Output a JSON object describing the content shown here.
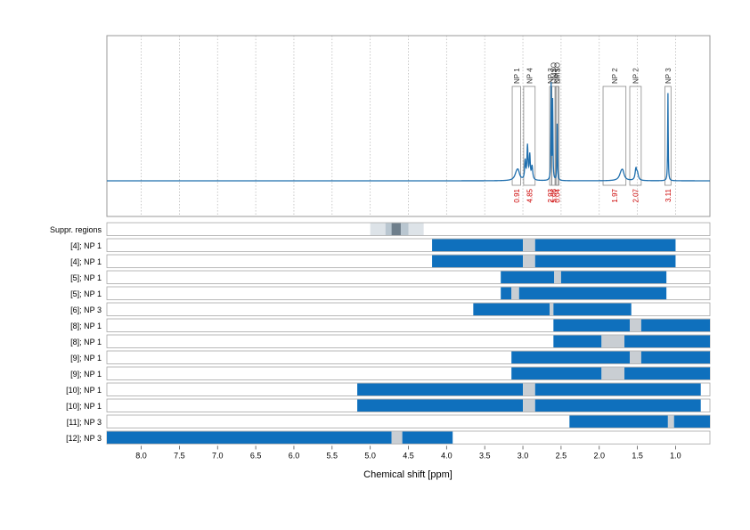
{
  "chart_data": {
    "type": "line",
    "xlabel": "Chemical shift [ppm]",
    "xlim": [
      8.45,
      0.55
    ],
    "x_reversed": true,
    "x_ticks": [
      8.0,
      7.5,
      7.0,
      6.5,
      6.0,
      5.5,
      5.0,
      4.5,
      4.0,
      3.5,
      3.0,
      2.5,
      2.0,
      1.5,
      1.0
    ],
    "x_tick_labels": [
      "8.0",
      "7.5",
      "7.0",
      "6.5",
      "6.0",
      "5.5",
      "5.0",
      "4.5",
      "4.0",
      "3.5",
      "3.0",
      "2.5",
      "2.0",
      "1.5",
      "1.0"
    ],
    "grid": "vertical dotted at x ticks",
    "colors": {
      "spectrum": "#1f6fae",
      "range": "#0f70bd",
      "suppressed": "#c9ced3",
      "integral": "#cc0000",
      "suppr_light": "#dde3e8",
      "suppr_mid": "#b9c6d0",
      "suppr_dark": "#6f7f8c"
    },
    "spectrum": {
      "baseline": 0,
      "peaks": [
        {
          "x": 3.08,
          "h": 0.06,
          "w": 0.03
        },
        {
          "x": 3.06,
          "h": 0.04,
          "w": 0.02
        },
        {
          "x": 2.97,
          "h": 0.14,
          "w": 0.008
        },
        {
          "x": 2.94,
          "h": 0.25,
          "w": 0.008
        },
        {
          "x": 2.91,
          "h": 0.18,
          "w": 0.008
        },
        {
          "x": 2.88,
          "h": 0.1,
          "w": 0.01
        },
        {
          "x": 2.63,
          "h": 0.72,
          "w": 0.004
        },
        {
          "x": 2.61,
          "h": 0.6,
          "w": 0.004
        },
        {
          "x": 2.55,
          "h": 0.47,
          "w": 0.004
        },
        {
          "x": 1.71,
          "h": 0.06,
          "w": 0.03
        },
        {
          "x": 1.69,
          "h": 0.04,
          "w": 0.02
        },
        {
          "x": 1.52,
          "h": 0.08,
          "w": 0.012
        },
        {
          "x": 1.5,
          "h": 0.05,
          "w": 0.015
        },
        {
          "x": 1.1,
          "h": 0.66,
          "w": 0.004
        }
      ]
    },
    "integral_regions": [
      {
        "label": "NP 1",
        "from": 3.14,
        "to": 3.03,
        "value": "0.91"
      },
      {
        "label": "NP 4",
        "from": 2.99,
        "to": 2.84,
        "value": "4.85"
      },
      {
        "label": "NP 3",
        "from": 2.65,
        "to": 2.625,
        "value": "2.93"
      },
      {
        "label": "DMSO",
        "from": 2.62,
        "to": 2.58,
        "value": "5.06"
      },
      {
        "label": "DMSO",
        "from": 2.565,
        "to": 2.54,
        "value": "0.04"
      },
      {
        "label": "NP 1",
        "from": 2.575,
        "to": 2.525,
        "value": ""
      },
      {
        "label": "NP 2",
        "from": 1.95,
        "to": 1.65,
        "value": "1.97"
      },
      {
        "label": "NP 2",
        "from": 1.6,
        "to": 1.45,
        "value": "2.07"
      },
      {
        "label": "NP 3",
        "from": 1.14,
        "to": 1.06,
        "value": "3.11"
      }
    ],
    "suppressed_regions": {
      "label": "Suppr. regions",
      "layers": [
        {
          "from": 5.0,
          "to": 4.3,
          "shade": "light"
        },
        {
          "from": 4.8,
          "to": 4.5,
          "shade": "mid"
        },
        {
          "from": 4.72,
          "to": 4.6,
          "shade": "dark"
        }
      ]
    },
    "range_rows": [
      {
        "label": "[4]; NP 1",
        "segments": [
          {
            "from": 4.19,
            "to": 3.0,
            "kind": "range"
          },
          {
            "from": 3.0,
            "to": 2.84,
            "kind": "suppressed"
          },
          {
            "from": 2.84,
            "to": 1.0,
            "kind": "range"
          }
        ]
      },
      {
        "label": "[4]; NP 1",
        "segments": [
          {
            "from": 4.19,
            "to": 3.0,
            "kind": "range"
          },
          {
            "from": 3.0,
            "to": 2.84,
            "kind": "suppressed"
          },
          {
            "from": 2.84,
            "to": 1.0,
            "kind": "range"
          }
        ]
      },
      {
        "label": "[5]; NP 1",
        "segments": [
          {
            "from": 3.29,
            "to": 2.59,
            "kind": "range"
          },
          {
            "from": 2.59,
            "to": 2.5,
            "kind": "suppressed"
          },
          {
            "from": 2.5,
            "to": 1.12,
            "kind": "range"
          }
        ]
      },
      {
        "label": "[5]; NP 1",
        "segments": [
          {
            "from": 3.29,
            "to": 3.15,
            "kind": "range"
          },
          {
            "from": 3.15,
            "to": 3.05,
            "kind": "suppressed"
          },
          {
            "from": 3.05,
            "to": 1.12,
            "kind": "range"
          }
        ]
      },
      {
        "label": "[6]; NP 3",
        "segments": [
          {
            "from": 3.65,
            "to": 2.65,
            "kind": "range"
          },
          {
            "from": 2.65,
            "to": 2.6,
            "kind": "suppressed"
          },
          {
            "from": 2.6,
            "to": 1.58,
            "kind": "range"
          }
        ]
      },
      {
        "label": "[8]; NP 1",
        "segments": [
          {
            "from": 2.6,
            "to": 1.6,
            "kind": "range"
          },
          {
            "from": 1.6,
            "to": 1.45,
            "kind": "suppressed"
          },
          {
            "from": 1.45,
            "to": 0.55,
            "kind": "range"
          }
        ]
      },
      {
        "label": "[8]; NP 1",
        "segments": [
          {
            "from": 2.6,
            "to": 1.97,
            "kind": "range"
          },
          {
            "from": 1.97,
            "to": 1.67,
            "kind": "suppressed"
          },
          {
            "from": 1.67,
            "to": 0.55,
            "kind": "range"
          }
        ]
      },
      {
        "label": "[9]; NP 1",
        "segments": [
          {
            "from": 3.15,
            "to": 1.6,
            "kind": "range"
          },
          {
            "from": 1.6,
            "to": 1.45,
            "kind": "suppressed"
          },
          {
            "from": 1.45,
            "to": 0.55,
            "kind": "range"
          }
        ]
      },
      {
        "label": "[9]; NP 1",
        "segments": [
          {
            "from": 3.15,
            "to": 1.97,
            "kind": "range"
          },
          {
            "from": 1.97,
            "to": 1.67,
            "kind": "suppressed"
          },
          {
            "from": 1.67,
            "to": 0.55,
            "kind": "range"
          }
        ]
      },
      {
        "label": "[10]; NP 1",
        "segments": [
          {
            "from": 5.17,
            "to": 3.0,
            "kind": "range"
          },
          {
            "from": 3.0,
            "to": 2.84,
            "kind": "suppressed"
          },
          {
            "from": 2.84,
            "to": 0.67,
            "kind": "range"
          }
        ]
      },
      {
        "label": "[10]; NP 1",
        "segments": [
          {
            "from": 5.17,
            "to": 3.0,
            "kind": "range"
          },
          {
            "from": 3.0,
            "to": 2.84,
            "kind": "suppressed"
          },
          {
            "from": 2.84,
            "to": 0.67,
            "kind": "range"
          }
        ]
      },
      {
        "label": "[11]; NP 3",
        "segments": [
          {
            "from": 2.39,
            "to": 1.1,
            "kind": "range"
          },
          {
            "from": 1.1,
            "to": 1.02,
            "kind": "suppressed"
          },
          {
            "from": 1.02,
            "to": 0.55,
            "kind": "range"
          }
        ]
      },
      {
        "label": "[12]; NP 3",
        "segments": [
          {
            "from": 8.45,
            "to": 4.72,
            "kind": "range"
          },
          {
            "from": 4.72,
            "to": 4.58,
            "kind": "suppressed"
          },
          {
            "from": 4.58,
            "to": 3.92,
            "kind": "range"
          }
        ]
      }
    ]
  }
}
